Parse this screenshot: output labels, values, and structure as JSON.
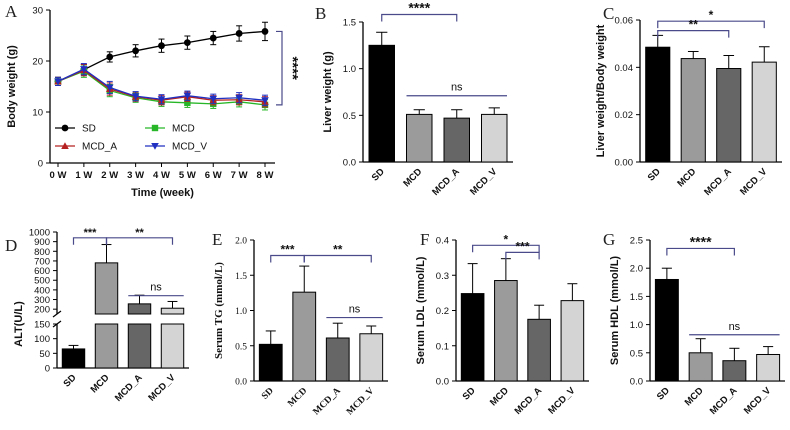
{
  "colors": {
    "SD": "#000000",
    "MCD": "#9b9b9b",
    "MCD_A": "#666666",
    "MCD_V": "#d4d4d4",
    "line_SD": "#000000",
    "line_MCD": "#27b627",
    "line_MCD_A": "#b52020",
    "line_MCD_V": "#2030c0",
    "bracket": "#4a4a8a"
  },
  "chart_data": [
    {
      "id": "A",
      "panel_label": "A",
      "type": "line",
      "ylabel": "Body weight (g)",
      "xlabel": "Time (week)",
      "x": [
        "0 W",
        "1 W",
        "2 W",
        "3 W",
        "4 W",
        "5 W",
        "6 W",
        "7 W",
        "8 W"
      ],
      "ylim": [
        0,
        30
      ],
      "yticks": [
        0,
        10,
        20,
        30
      ],
      "series": [
        {
          "name": "SD",
          "marker": "circle",
          "values": [
            16,
            18.3,
            20.8,
            22,
            23,
            23.6,
            24.5,
            25.4,
            25.8
          ],
          "errors": [
            0.8,
            1,
            1,
            1.2,
            1.3,
            1.3,
            1.3,
            1.5,
            1.8
          ]
        },
        {
          "name": "MCD",
          "marker": "square",
          "values": [
            16,
            18,
            14.2,
            12.8,
            12,
            11.8,
            11.6,
            12,
            11.4
          ],
          "errors": [
            0.8,
            1.2,
            1.2,
            0.9,
            0.9,
            0.9,
            0.9,
            1,
            1
          ]
        },
        {
          "name": "MCD_A",
          "marker": "triangle",
          "values": [
            16,
            18.2,
            14.5,
            13,
            12.3,
            13,
            12.3,
            12.4,
            12
          ],
          "errors": [
            0.8,
            1.1,
            1.2,
            0.9,
            0.9,
            0.9,
            0.9,
            1,
            1
          ]
        },
        {
          "name": "MCD_V",
          "marker": "triangle-down",
          "values": [
            16,
            18.4,
            14.8,
            13.1,
            12.5,
            13.2,
            12.6,
            12.8,
            12.3
          ],
          "errors": [
            0.8,
            1.1,
            1.2,
            0.9,
            0.9,
            0.9,
            0.9,
            1,
            1
          ]
        }
      ],
      "legend": [
        "SD",
        "MCD",
        "MCD_A",
        "MCD_V"
      ],
      "annotations": [
        {
          "text": "****",
          "type": "bracket-right",
          "from": 25.8,
          "to": 11.4
        }
      ]
    },
    {
      "id": "B",
      "panel_label": "B",
      "type": "bar",
      "ylabel": "Liver weight (g)",
      "categories": [
        "SD",
        "MCD",
        "MCD_A",
        "MCD_V"
      ],
      "values": [
        1.25,
        0.51,
        0.47,
        0.51
      ],
      "errors": [
        0.14,
        0.05,
        0.09,
        0.07
      ],
      "ylim": [
        0,
        1.5
      ],
      "yticks": [
        0,
        0.5,
        1.0,
        1.5
      ],
      "ytick_labels": [
        "0.0",
        "0.5",
        "1.0",
        "1.5"
      ],
      "annotations": [
        {
          "text": "****",
          "from": 0,
          "to": 2,
          "level": 1.58
        },
        {
          "text": "ns",
          "from": 1,
          "to": 3,
          "level": 0.71
        }
      ]
    },
    {
      "id": "C",
      "panel_label": "C",
      "type": "bar",
      "ylabel": "Liver weight/Body weight",
      "categories": [
        "SD",
        "MCD",
        "MCD_A",
        "MCD_V"
      ],
      "values": [
        0.0485,
        0.0437,
        0.0395,
        0.0422
      ],
      "errors": [
        0.005,
        0.003,
        0.0055,
        0.0065
      ],
      "ylim": [
        0,
        0.06
      ],
      "yticks": [
        0,
        0.02,
        0.04,
        0.06
      ],
      "ytick_labels": [
        "0.00",
        "0.02",
        "0.04",
        "0.06"
      ],
      "annotations": [
        {
          "text": "*",
          "from": 0,
          "to": 3,
          "level": 0.0595
        },
        {
          "text": "**",
          "from": 0,
          "to": 2,
          "level": 0.0555
        }
      ]
    },
    {
      "id": "D",
      "panel_label": "D",
      "type": "bar",
      "ylabel": "ALT(U/L)",
      "categories": [
        "SD",
        "MCD",
        "MCD_A",
        "MCD_V"
      ],
      "values": [
        65,
        680,
        255,
        210
      ],
      "errors": [
        12,
        190,
        90,
        70
      ],
      "broken_axis": {
        "lower": [
          0,
          150
        ],
        "upper": [
          150,
          1000
        ]
      },
      "yticks_lower": [
        0,
        50,
        100,
        150
      ],
      "yticks_upper": [
        200,
        300,
        400,
        500,
        600,
        700,
        800,
        900,
        1000
      ],
      "annotations": [
        {
          "text": "***",
          "from": 0,
          "to": 1,
          "level": 940
        },
        {
          "text": "**",
          "from": 1,
          "to": 3,
          "level": 940
        },
        {
          "text": "ns",
          "from": 2,
          "to": 3,
          "level": 340
        }
      ]
    },
    {
      "id": "E",
      "panel_label": "E",
      "type": "bar",
      "ylabel": "Serum TG (mmol/L)",
      "categories": [
        "SD",
        "MCD",
        "MCD_A",
        "MCD_V"
      ],
      "values": [
        0.52,
        1.26,
        0.61,
        0.67
      ],
      "errors": [
        0.19,
        0.37,
        0.21,
        0.11
      ],
      "ylim": [
        0,
        2.0
      ],
      "yticks": [
        0,
        0.5,
        1.0,
        1.5,
        2.0
      ],
      "ytick_labels": [
        "0.0",
        "0.5",
        "1.0",
        "1.5",
        "2.0"
      ],
      "annotations": [
        {
          "text": "***",
          "from": 0,
          "to": 1,
          "level": 1.78
        },
        {
          "text": "**",
          "from": 1,
          "to": 3,
          "level": 1.78
        },
        {
          "text": "ns",
          "from": 2,
          "to": 3,
          "level": 0.9
        }
      ]
    },
    {
      "id": "F",
      "panel_label": "F",
      "type": "bar",
      "ylabel": "Serum LDL (mmol/L)",
      "categories": [
        "SD",
        "MCD",
        "MCD_A",
        "MCD_V"
      ],
      "values": [
        0.248,
        0.285,
        0.175,
        0.228
      ],
      "errors": [
        0.085,
        0.062,
        0.04,
        0.048
      ],
      "ylim": [
        0,
        0.4
      ],
      "yticks": [
        0,
        0.1,
        0.2,
        0.3,
        0.4
      ],
      "ytick_labels": [
        "0.0",
        "0.1",
        "0.2",
        "0.3",
        "0.4"
      ],
      "annotations": [
        {
          "text": "*",
          "from": 0,
          "to": 2,
          "level": 0.385
        },
        {
          "text": "***",
          "from": 1,
          "to": 2,
          "level": 0.365
        }
      ]
    },
    {
      "id": "G",
      "panel_label": "G",
      "type": "bar",
      "ylabel": "Serum HDL (mmol/L)",
      "categories": [
        "SD",
        "MCD",
        "MCD_A",
        "MCD_V"
      ],
      "values": [
        1.8,
        0.5,
        0.36,
        0.47
      ],
      "errors": [
        0.2,
        0.25,
        0.22,
        0.14
      ],
      "ylim": [
        0,
        2.5
      ],
      "yticks": [
        0,
        0.5,
        1.0,
        1.5,
        2.0,
        2.5
      ],
      "ytick_labels": [
        "0.0",
        "0.5",
        "1.0",
        "1.5",
        "2.0",
        "2.5"
      ],
      "annotations": [
        {
          "text": "****",
          "from": 0,
          "to": 2,
          "level": 2.35
        },
        {
          "text": "ns",
          "from": 1,
          "to": 3,
          "level": 0.82
        }
      ]
    }
  ]
}
